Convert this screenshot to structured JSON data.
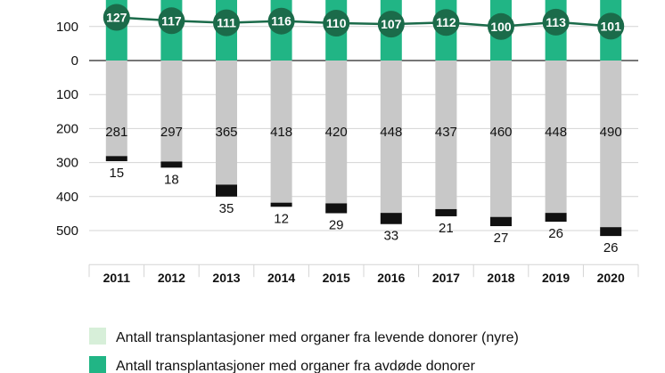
{
  "colors": {
    "living_light": "#d7efd9",
    "deceased_dark": "#21b585",
    "deceased_line": "#1b6b4a",
    "living_gray": "#c8c8c8",
    "black": "#111111",
    "grid": "#d4d4d4",
    "axis": "#777777"
  },
  "legend": [
    {
      "label": "Antall transplantasjoner med organer fra levende donorer (nyre)",
      "color": "#d7efd9"
    },
    {
      "label": "Antall transplantasjoner med organer fra avdøde donorer",
      "color": "#21b585"
    }
  ],
  "chart_data": {
    "type": "bar",
    "categories": [
      "2011",
      "2012",
      "2013",
      "2014",
      "2015",
      "2016",
      "2017",
      "2018",
      "2019",
      "2020"
    ],
    "y_ticks": [
      {
        "label": "100",
        "value": 100
      },
      {
        "label": "0",
        "value": 0
      },
      {
        "label": "100",
        "value": -100
      },
      {
        "label": "200",
        "value": -200
      },
      {
        "label": "300",
        "value": -300
      },
      {
        "label": "400",
        "value": -400
      },
      {
        "label": "500",
        "value": -500
      }
    ],
    "ylim_visible": [
      -600,
      160
    ],
    "grid": true,
    "series": [
      {
        "values": [
          127,
          117,
          111,
          116,
          110,
          107,
          112,
          100,
          113,
          101
        ]
      },
      {
        "values": [
          281,
          297,
          365,
          418,
          420,
          448,
          437,
          460,
          448,
          490
        ]
      },
      {
        "values": [
          15,
          18,
          35,
          12,
          29,
          33,
          21,
          27,
          26,
          26
        ]
      }
    ]
  }
}
